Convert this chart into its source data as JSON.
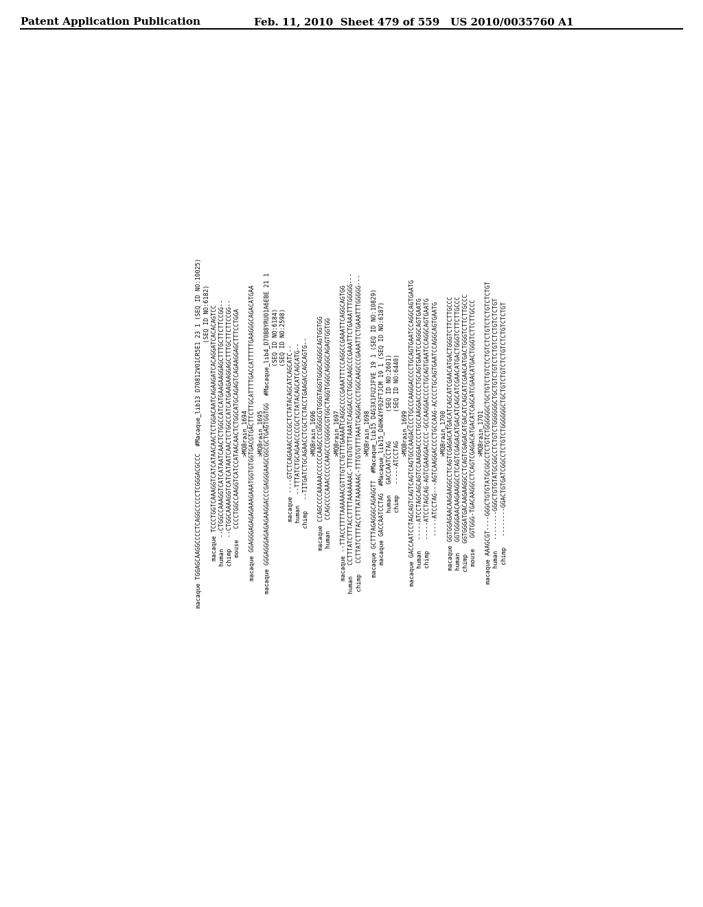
{
  "header_left": "Patent Application Publication",
  "header_right": "Feb. 11, 2010  Sheet 479 of 559   US 2010/0035760 A1",
  "background_color": "#ffffff",
  "text_color": "#000000",
  "font_size": 6.2,
  "header_font_size": 11,
  "content": [
    "macaque TGGAGCAAGGCCCCTCAGGCCCCCTCGGGACGCCC  #Macaque_lib13 D70812V01CR5E1 23 1 (SEQ ID NO:10025)",
    "                                                                  (SEQ ID NO:6182)",
    "macaque TCCCTGGTCAAAGGTCATCATAACAACTCTGGACAATCAGAAGATCACAGGATCACACAGTCC",
    "human   --CTGGCCAAAGGTCATCATAATCAACTCTGGCCATCATGAAGAAGGAGCTTTGCTTCTTCCGG--",
    "chimp   --CTGGCAAAAGGTCATCATAATCAACTCTGGCCATCATGAAGAAGGAGCTTTGCTTCTTCCGG--",
    "mouse   CCCCTGGCCAAGGTCATCCATAACAACTCTGGCATGCAGAGTCAGAAGGAGCTTTCCTGGA",
    ">MQBrain_1694",
    "macaque GGAGGGAGAGAGAAAGAAATGGTGTGGTGACGTGACTTCTTGCATTTTGACCATTTTTGAAGGGCAGACATGAA",
    ">MQBrain_1695",
    "macaque GGGAGGGAGAGAGAAGGACCCGAGGGAAGCGGCGCTGAGTGGTGG  #Macaque_lib4_D70B8YRU01A6EBE 21 1",
    "                                                     (SEQ ID NO:6184)",
    "                                                     (SEQ ID NO:2598)",
    "macaque ----GTCTCAGAAACCCCGCTCTATACAGCATCAGCATC--",
    "human   --TTTATCTGCAGAACCCCGCTCTATACAGCATCAGCATG--",
    "chimp   --TITGATCTGCAGAACCTCGCTCTACCTGAAGACCAGCAGTG--",
    ">MQBrain_1696",
    "macaque CCAGCCCCAAAAACCCCCCAAGCCCGGGGCGTGGGTAGGTGGGCAGGGCAGTGGTGG",
    "human   CCAGCCCCAAACCCCCAAGCCCGGGGCGTGGCTAGGTGGGCAGGGCAGAGTGGTGG",
    ">MQBrain_1697",
    "macaque --TTACCTTTTAAAAAACGTTTGTCTGTTTGAAAATCAGGCCCCGAAATTTCCAGGCCGAAATTCAGGCAGTGG",
    "human   CCTTTATCTTTACCTTTTAAAAAAAC-TTTGTGTTTAAATCAGGACCCTGGCAAGCCCGAAATTCTGAAATTTGGGGG---",
    "chimp   CCTTATCTTTACCTTTATAAAAAAC-TTTGTGTTTAAATCAGGACCCTGGCAAGCCCGAAATTCTGAAATTTGGGGG---",
    ">MQBrain_1698",
    "macaque GCTTTAGAGGGCAGAGGTT  #Macaque_lib15 D4G3X1FU2JFVE 19 1 (SEQ ID NO:10829)",
    "macaque GACCAATCCTAG  #Macaque_lib15_D4HK4YF02FTJCM 19 1 (SEQ ID NO:6187)",
    "human   GACCAATCCTAG        (SEQ ID NO:2601)",
    "chimp   -----ATCCTAG        (SEQ ID NO:6440)",
    ">MQBrain_1699",
    "macaque GACCAATCCTAGCAGTCAGTCAGTCAGTGCCAAGACCCCTGCCCAAGGACCCCTGCAGTGAATCCAGGCAGTGAATG",
    "human   -----ATCCTAGCAGCAGTCCAAGGACCCCTGCCAAGGACCCCTGCAGTGAATCCAGGCAGTGAATG",
    "chimp   -----ATCCTAGCAG-AGTCGAAGGACCCC-GCCAAGGACCCCTGCAGTGAATCCAGGCAGTGAATG",
    "        -----ATCCTAG---AGTCAAGGACCCCTGCCAAG-ACCCCTGCAGTGAATCCAGGCAGTGAATG",
    ">MQBrain_1700",
    "macaque GGTGGAGAACAAGAAGGCCTCAGTCGAGACATGACATCAGCATCGAACATGACTGGGTCTTCTTGCCC",
    "human   GGTGGGGAACAAGAAGGCCTCAGTCGAGACATGACATCAGCATCGAACATGACTGGGTCTTCTTGCCC",
    "chimp   GGTGGGATGACAAGAAGGCCTCAGTCGAGACATGACATCAGCATCGAACATGACTGGGTCTTCTTGCCC",
    "mouse   GGTGGG-TGACAAGGCCTCAGTCGAGACATGACATCAGCATCGAACATGACTGGGTCTTCTTGCCC",
    ">MQBrain_1701",
    "macaque AAAGCGT----GGGCTGTGTATGCGGCCTCTGTCTGGGGGGCTGCTGTCTGTCTCTGTCTCTGTCTCTGTCTCTGT",
    "human   --------GGGCTGTGTATGCGGCCTCTGTCTGGGGGGCTGCTGTCTGTCTCTGTCTCTGTCTCTGT",
    "chimp   --------GGACTGTGATCGGCCTCTGTCTGGGGGGCTGCTGTCTGTCTCTGTCTCTGTCTCTGT"
  ]
}
